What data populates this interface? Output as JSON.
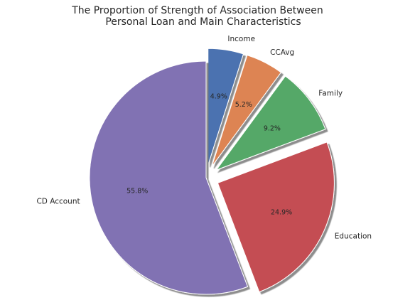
{
  "chart_data": {
    "type": "pie",
    "title_lines": [
      "The Proportion of Strength of Association  Between",
      "Personal Loan and Main Characteristics"
    ],
    "categories": [
      "Income",
      "CCAvg",
      "Family",
      "Education",
      "CD Account"
    ],
    "values": [
      4.9,
      5.2,
      9.2,
      24.9,
      55.8
    ],
    "value_labels": [
      "4.9%",
      "5.2%",
      "9.2%",
      "24.9%",
      "55.8%"
    ],
    "exploded": [
      true,
      true,
      true,
      true,
      false
    ],
    "colors": [
      "#4c72b0",
      "#dd8452",
      "#55a868",
      "#c44e52",
      "#8172b3"
    ],
    "start_angle_deg": 90,
    "direction": "clockwise",
    "shadow": true,
    "legend": "none"
  }
}
